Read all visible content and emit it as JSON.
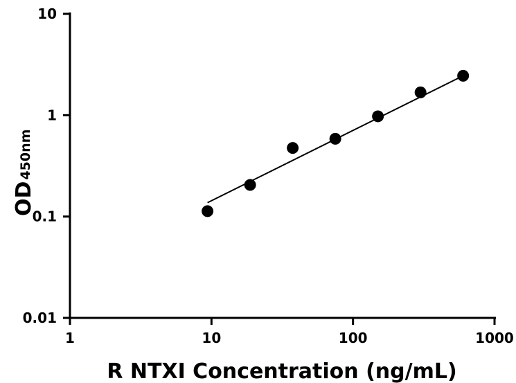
{
  "chart_data": {
    "type": "scatter",
    "xlabel": "R NTXI Concentration (ng/mL)",
    "ylabel_main": "OD",
    "ylabel_sub": "450nm",
    "x_scale": "log",
    "y_scale": "log",
    "xlim": [
      1,
      1000
    ],
    "ylim": [
      0.01,
      10
    ],
    "x_ticks": [
      1,
      10,
      100,
      1000
    ],
    "x_tick_labels": [
      "1",
      "10",
      "100",
      "1000"
    ],
    "y_ticks": [
      0.01,
      0.1,
      1,
      10
    ],
    "y_tick_labels": [
      "0.01",
      "0.1",
      "1",
      "10"
    ],
    "grid": false,
    "series": [
      {
        "x": [
          9.375,
          18.75,
          37.5,
          75,
          150,
          300,
          600
        ],
        "y": [
          0.113,
          0.205,
          0.475,
          0.585,
          0.975,
          1.68,
          2.45
        ]
      }
    ],
    "fit_line": {
      "x": [
        9.375,
        600
      ],
      "y": [
        0.137,
        2.45
      ]
    },
    "colors": {
      "points": "#000000",
      "line": "#000000",
      "axes": "#000000"
    }
  }
}
